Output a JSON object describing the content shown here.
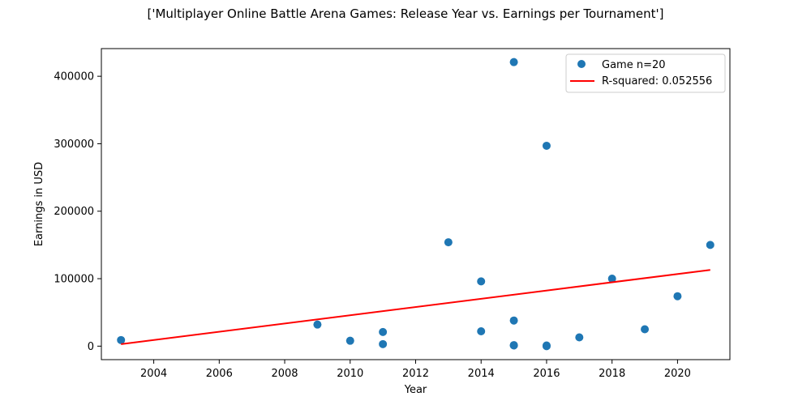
{
  "chart_data": {
    "type": "scatter",
    "title": "['Multiplayer Online Battle Arena Games: Release Year vs. Earnings per Tournament']",
    "xlabel": "Year",
    "ylabel": "Earnings in USD",
    "xlim": [
      2002.4,
      2021.6
    ],
    "ylim": [
      -20000,
      441000
    ],
    "xticks": [
      2004,
      2006,
      2008,
      2010,
      2012,
      2014,
      2016,
      2018,
      2020
    ],
    "yticks": [
      0,
      100000,
      200000,
      300000,
      400000
    ],
    "xtick_labels": [
      "2004",
      "2006",
      "2008",
      "2010",
      "2012",
      "2014",
      "2016",
      "2018",
      "2020"
    ],
    "ytick_labels": [
      "0",
      "100000",
      "200000",
      "300000",
      "400000"
    ],
    "grid": false,
    "legend_position": "top-right",
    "legend": {
      "scatter_label": "Game n=20",
      "line_label": "R-squared: 0.052556"
    },
    "series": [
      {
        "name": "Game n=20",
        "kind": "scatter",
        "color": "#1f77b4",
        "points": [
          {
            "x": 2003,
            "y": 9000
          },
          {
            "x": 2009,
            "y": 32000
          },
          {
            "x": 2010,
            "y": 8000
          },
          {
            "x": 2011,
            "y": 21000
          },
          {
            "x": 2011,
            "y": 3000
          },
          {
            "x": 2013,
            "y": 154000
          },
          {
            "x": 2014,
            "y": 96000
          },
          {
            "x": 2014,
            "y": 22000
          },
          {
            "x": 2015,
            "y": 421000
          },
          {
            "x": 2015,
            "y": 38000
          },
          {
            "x": 2015,
            "y": 1500
          },
          {
            "x": 2015,
            "y": 1000
          },
          {
            "x": 2016,
            "y": 297000
          },
          {
            "x": 2016,
            "y": 1000
          },
          {
            "x": 2016,
            "y": 0
          },
          {
            "x": 2017,
            "y": 13000
          },
          {
            "x": 2018,
            "y": 100000
          },
          {
            "x": 2019,
            "y": 25000
          },
          {
            "x": 2020,
            "y": 74000
          },
          {
            "x": 2021,
            "y": 150000
          }
        ]
      },
      {
        "name": "R-squared: 0.052556",
        "kind": "line",
        "color": "#ff0000",
        "points": [
          {
            "x": 2003,
            "y": 3000
          },
          {
            "x": 2021,
            "y": 113000
          }
        ]
      }
    ]
  }
}
